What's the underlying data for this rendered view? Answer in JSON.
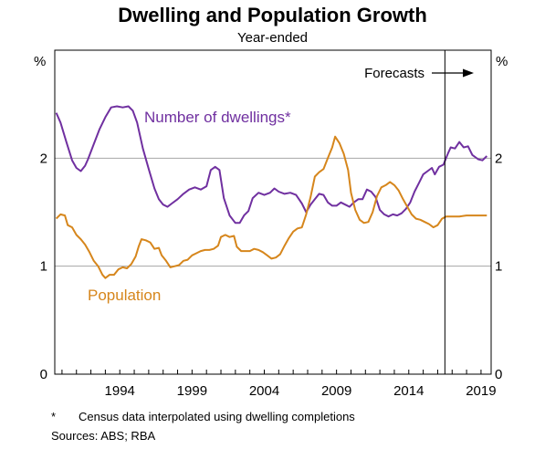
{
  "chart_data": {
    "type": "line",
    "title": "Dwelling and Population Growth",
    "subtitle": "Year-ended",
    "left_unit": "%",
    "right_unit": "%",
    "ylim": [
      0,
      3
    ],
    "yticks": [
      0,
      1,
      2
    ],
    "xlim": [
      1989.5,
      2019.7
    ],
    "xticks": [
      1994,
      1999,
      2004,
      2009,
      2014,
      2019
    ],
    "grid": "horizontal",
    "forecast_start": 2016.5,
    "forecast_label": "Forecasts",
    "series": [
      {
        "name": "Number of dwellings*",
        "color": "#7030a0",
        "points": [
          [
            1989.6,
            2.42
          ],
          [
            1989.9,
            2.33
          ],
          [
            1990.3,
            2.15
          ],
          [
            1990.7,
            1.98
          ],
          [
            1991.0,
            1.91
          ],
          [
            1991.3,
            1.88
          ],
          [
            1991.6,
            1.93
          ],
          [
            1991.8,
            1.99
          ],
          [
            1992.2,
            2.13
          ],
          [
            1992.6,
            2.27
          ],
          [
            1993.0,
            2.38
          ],
          [
            1993.4,
            2.47
          ],
          [
            1993.8,
            2.48
          ],
          [
            1994.2,
            2.47
          ],
          [
            1994.6,
            2.48
          ],
          [
            1994.9,
            2.44
          ],
          [
            1995.2,
            2.33
          ],
          [
            1995.6,
            2.09
          ],
          [
            1996.0,
            1.9
          ],
          [
            1996.4,
            1.72
          ],
          [
            1996.7,
            1.62
          ],
          [
            1997.0,
            1.57
          ],
          [
            1997.3,
            1.55
          ],
          [
            1997.6,
            1.58
          ],
          [
            1998.0,
            1.62
          ],
          [
            1998.4,
            1.67
          ],
          [
            1998.8,
            1.71
          ],
          [
            1999.2,
            1.73
          ],
          [
            1999.6,
            1.71
          ],
          [
            2000.0,
            1.74
          ],
          [
            2000.3,
            1.89
          ],
          [
            2000.6,
            1.92
          ],
          [
            2000.9,
            1.89
          ],
          [
            2001.2,
            1.63
          ],
          [
            2001.6,
            1.47
          ],
          [
            2002.0,
            1.4
          ],
          [
            2002.3,
            1.4
          ],
          [
            2002.6,
            1.47
          ],
          [
            2002.9,
            1.51
          ],
          [
            2003.2,
            1.63
          ],
          [
            2003.6,
            1.68
          ],
          [
            2004.0,
            1.66
          ],
          [
            2004.4,
            1.68
          ],
          [
            2004.7,
            1.72
          ],
          [
            2005.0,
            1.69
          ],
          [
            2005.4,
            1.67
          ],
          [
            2005.8,
            1.68
          ],
          [
            2006.2,
            1.66
          ],
          [
            2006.6,
            1.58
          ],
          [
            2006.9,
            1.5
          ],
          [
            2007.2,
            1.57
          ],
          [
            2007.5,
            1.62
          ],
          [
            2007.8,
            1.67
          ],
          [
            2008.1,
            1.66
          ],
          [
            2008.4,
            1.59
          ],
          [
            2008.7,
            1.56
          ],
          [
            2009.0,
            1.56
          ],
          [
            2009.3,
            1.59
          ],
          [
            2009.6,
            1.57
          ],
          [
            2009.9,
            1.55
          ],
          [
            2010.2,
            1.59
          ],
          [
            2010.5,
            1.62
          ],
          [
            2010.8,
            1.62
          ],
          [
            2011.1,
            1.71
          ],
          [
            2011.4,
            1.69
          ],
          [
            2011.7,
            1.64
          ],
          [
            2012.0,
            1.52
          ],
          [
            2012.3,
            1.48
          ],
          [
            2012.6,
            1.46
          ],
          [
            2012.9,
            1.48
          ],
          [
            2013.2,
            1.47
          ],
          [
            2013.5,
            1.49
          ],
          [
            2013.8,
            1.53
          ],
          [
            2014.1,
            1.59
          ],
          [
            2014.4,
            1.69
          ],
          [
            2014.7,
            1.77
          ],
          [
            2015.0,
            1.85
          ],
          [
            2015.3,
            1.88
          ],
          [
            2015.6,
            1.91
          ],
          [
            2015.8,
            1.85
          ],
          [
            2016.1,
            1.92
          ],
          [
            2016.4,
            1.94
          ],
          [
            2016.7,
            2.04
          ],
          [
            2016.9,
            2.1
          ],
          [
            2017.2,
            2.09
          ],
          [
            2017.5,
            2.15
          ],
          [
            2017.8,
            2.1
          ],
          [
            2018.1,
            2.11
          ],
          [
            2018.4,
            2.03
          ],
          [
            2018.8,
            1.99
          ],
          [
            2019.1,
            1.98
          ],
          [
            2019.4,
            2.02
          ]
        ]
      },
      {
        "name": "Population",
        "color": "#d6861c",
        "points": [
          [
            1989.6,
            1.44
          ],
          [
            1989.9,
            1.48
          ],
          [
            1990.2,
            1.47
          ],
          [
            1990.4,
            1.38
          ],
          [
            1990.7,
            1.36
          ],
          [
            1991.0,
            1.29
          ],
          [
            1991.3,
            1.25
          ],
          [
            1991.6,
            1.2
          ],
          [
            1991.9,
            1.13
          ],
          [
            1992.2,
            1.05
          ],
          [
            1992.5,
            1.0
          ],
          [
            1992.8,
            0.92
          ],
          [
            1993.0,
            0.89
          ],
          [
            1993.3,
            0.92
          ],
          [
            1993.6,
            0.92
          ],
          [
            1993.9,
            0.97
          ],
          [
            1994.2,
            0.99
          ],
          [
            1994.5,
            0.98
          ],
          [
            1994.8,
            1.02
          ],
          [
            1995.1,
            1.09
          ],
          [
            1995.3,
            1.18
          ],
          [
            1995.5,
            1.25
          ],
          [
            1995.8,
            1.24
          ],
          [
            1996.1,
            1.22
          ],
          [
            1996.4,
            1.16
          ],
          [
            1996.7,
            1.17
          ],
          [
            1996.9,
            1.1
          ],
          [
            1997.2,
            1.05
          ],
          [
            1997.5,
            0.99
          ],
          [
            1997.8,
            1.0
          ],
          [
            1998.1,
            1.01
          ],
          [
            1998.4,
            1.05
          ],
          [
            1998.7,
            1.06
          ],
          [
            1999.0,
            1.1
          ],
          [
            1999.3,
            1.12
          ],
          [
            1999.6,
            1.14
          ],
          [
            1999.9,
            1.15
          ],
          [
            2000.2,
            1.15
          ],
          [
            2000.5,
            1.16
          ],
          [
            2000.8,
            1.19
          ],
          [
            2001.0,
            1.27
          ],
          [
            2001.3,
            1.29
          ],
          [
            2001.6,
            1.27
          ],
          [
            2001.9,
            1.28
          ],
          [
            2002.1,
            1.18
          ],
          [
            2002.4,
            1.14
          ],
          [
            2002.7,
            1.14
          ],
          [
            2003.0,
            1.14
          ],
          [
            2003.3,
            1.16
          ],
          [
            2003.6,
            1.15
          ],
          [
            2003.9,
            1.13
          ],
          [
            2004.2,
            1.1
          ],
          [
            2004.5,
            1.07
          ],
          [
            2004.8,
            1.08
          ],
          [
            2005.1,
            1.11
          ],
          [
            2005.4,
            1.19
          ],
          [
            2005.7,
            1.26
          ],
          [
            2006.0,
            1.32
          ],
          [
            2006.3,
            1.35
          ],
          [
            2006.6,
            1.36
          ],
          [
            2006.9,
            1.48
          ],
          [
            2007.2,
            1.64
          ],
          [
            2007.5,
            1.83
          ],
          [
            2007.8,
            1.87
          ],
          [
            2008.1,
            1.9
          ],
          [
            2008.4,
            2.0
          ],
          [
            2008.7,
            2.1
          ],
          [
            2008.9,
            2.2
          ],
          [
            2009.2,
            2.14
          ],
          [
            2009.5,
            2.04
          ],
          [
            2009.8,
            1.89
          ],
          [
            2010.0,
            1.68
          ],
          [
            2010.3,
            1.52
          ],
          [
            2010.6,
            1.43
          ],
          [
            2010.9,
            1.4
          ],
          [
            2011.2,
            1.41
          ],
          [
            2011.5,
            1.5
          ],
          [
            2011.8,
            1.65
          ],
          [
            2012.1,
            1.73
          ],
          [
            2012.4,
            1.75
          ],
          [
            2012.7,
            1.78
          ],
          [
            2013.0,
            1.75
          ],
          [
            2013.3,
            1.7
          ],
          [
            2013.6,
            1.62
          ],
          [
            2013.9,
            1.55
          ],
          [
            2014.2,
            1.48
          ],
          [
            2014.5,
            1.44
          ],
          [
            2014.8,
            1.43
          ],
          [
            2015.1,
            1.41
          ],
          [
            2015.4,
            1.39
          ],
          [
            2015.7,
            1.36
          ],
          [
            2016.0,
            1.38
          ],
          [
            2016.3,
            1.44
          ],
          [
            2016.6,
            1.46
          ],
          [
            2017.0,
            1.46
          ],
          [
            2017.5,
            1.46
          ],
          [
            2018.0,
            1.47
          ],
          [
            2018.5,
            1.47
          ],
          [
            2019.0,
            1.47
          ],
          [
            2019.4,
            1.47
          ]
        ]
      }
    ]
  },
  "notes": {
    "asterisk": "*",
    "footnote": "Census data interpolated using dwelling completions",
    "sources": "Sources:   ABS; RBA"
  }
}
